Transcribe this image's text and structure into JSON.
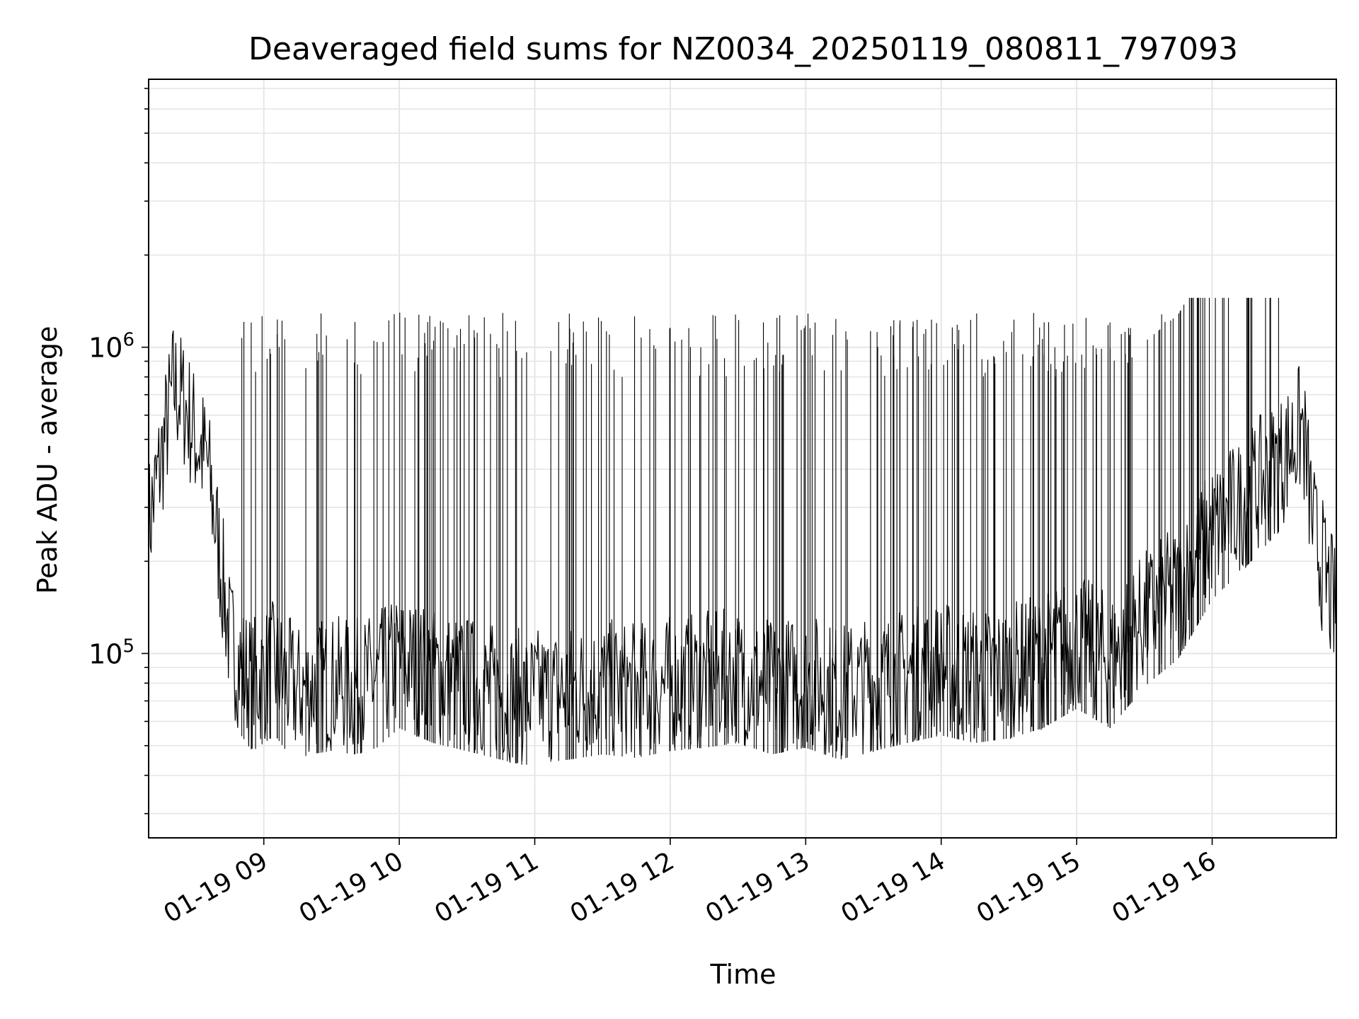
{
  "chart_data": {
    "type": "line",
    "title": "Deaveraged field sums for NZ0034_20250119_080811_797093",
    "xlabel": "Time",
    "ylabel": "Peak ADU - average",
    "yscale": "log",
    "grid": true,
    "legend": "none",
    "xlim": [
      "2025-01-19 08:09",
      "2025-01-19 16:55"
    ],
    "ylim": [
      25000,
      7500000
    ],
    "x_ticks": [
      {
        "x": "2025-01-19 09:00",
        "label": "01-19 09"
      },
      {
        "x": "2025-01-19 10:00",
        "label": "01-19 10"
      },
      {
        "x": "2025-01-19 11:00",
        "label": "01-19 11"
      },
      {
        "x": "2025-01-19 12:00",
        "label": "01-19 12"
      },
      {
        "x": "2025-01-19 13:00",
        "label": "01-19 13"
      },
      {
        "x": "2025-01-19 14:00",
        "label": "01-19 14"
      },
      {
        "x": "2025-01-19 15:00",
        "label": "01-19 15"
      },
      {
        "x": "2025-01-19 16:00",
        "label": "01-19 16"
      }
    ],
    "y_ticks": [
      {
        "value": 100000,
        "base": "10",
        "exp": "5"
      },
      {
        "value": 1000000,
        "base": "10",
        "exp": "6"
      }
    ],
    "line_color": "#000000",
    "grid_color": "#e6e6e6",
    "series": [
      {
        "x": [
          "2025-01-19 08:09",
          "2025-01-19 08:15",
          "2025-01-19 08:20",
          "2025-01-19 08:25",
          "2025-01-19 08:30",
          "2025-01-19 08:35",
          "2025-01-19 08:40",
          "2025-01-19 08:45",
          "2025-01-19 08:50",
          "2025-01-19 08:55",
          "2025-01-19 09:00",
          "2025-01-19 09:05",
          "2025-01-19 09:10",
          "2025-01-19 09:15",
          "2025-01-19 09:20",
          "2025-01-19 09:30",
          "2025-01-19 09:40",
          "2025-01-19 09:50",
          "2025-01-19 10:00",
          "2025-01-19 10:15",
          "2025-01-19 10:30",
          "2025-01-19 10:45",
          "2025-01-19 10:55",
          "2025-01-19 11:15",
          "2025-01-19 11:30",
          "2025-01-19 11:45",
          "2025-01-19 12:00",
          "2025-01-19 12:15",
          "2025-01-19 12:30",
          "2025-01-19 12:45",
          "2025-01-19 13:00",
          "2025-01-19 13:15",
          "2025-01-19 13:30",
          "2025-01-19 13:45",
          "2025-01-19 14:00",
          "2025-01-19 14:15",
          "2025-01-19 14:30",
          "2025-01-19 14:45",
          "2025-01-19 15:00",
          "2025-01-19 15:15",
          "2025-01-19 15:30",
          "2025-01-19 15:45",
          "2025-01-19 16:00",
          "2025-01-19 16:15",
          "2025-01-19 16:30",
          "2025-01-19 16:40",
          "2025-01-19 16:45",
          "2025-01-19 16:50",
          "2025-01-19 16:55"
        ],
        "y": [
          260000,
          450000,
          750000,
          650000,
          500000,
          420000,
          220000,
          110000,
          90000,
          80000,
          85000,
          90000,
          80000,
          75000,
          78000,
          80000,
          78000,
          82000,
          95000,
          85000,
          80000,
          75000,
          72000,
          75000,
          78000,
          76000,
          80000,
          82000,
          85000,
          78000,
          82000,
          75000,
          80000,
          85000,
          90000,
          85000,
          88000,
          95000,
          110000,
          95000,
          130000,
          160000,
          250000,
          320000,
          420000,
          550000,
          250000,
          180000,
          130000
        ]
      }
    ]
  }
}
